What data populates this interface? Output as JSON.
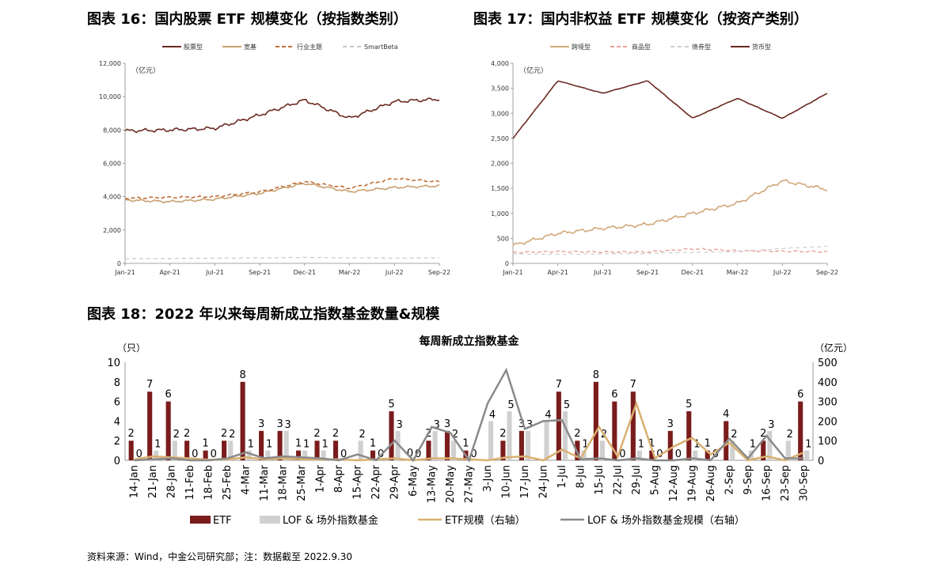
{
  "fig16": {
    "title": "图表 16：国内股票 ETF 规模变化（按指数类别）",
    "unit": "（亿元）",
    "yticks": [
      "0",
      "2,000",
      "4,000",
      "6,000",
      "8,000",
      "10,000",
      "12,000"
    ],
    "xticks": [
      "Jan-21",
      "Apr-21",
      "Jul-21",
      "Sep-21",
      "Dec-21",
      "Mar-22",
      "Jul-22",
      "Sep-22"
    ],
    "legend": [
      "股票型",
      "宽基",
      "行业主题",
      "SmartBeta"
    ],
    "colors": [
      "#6b2a22",
      "#c8a070",
      "#c0703a",
      "#c8c8c8"
    ]
  },
  "fig17": {
    "title": "图表 17：国内非权益 ETF 规模变化（按资产类别）",
    "unit": "（亿元）",
    "yticks": [
      "0",
      "500",
      "1,000",
      "1,500",
      "2,000",
      "2,500",
      "3,000",
      "3,500",
      "4,000"
    ],
    "xticks": [
      "Jan-21",
      "Apr-21",
      "Jul-21",
      "Sep-21",
      "Dec-21",
      "Mar-22",
      "Jul-22",
      "Sep-22"
    ],
    "legend": [
      "跨境型",
      "商品型",
      "债券型",
      "货币型"
    ],
    "colors": [
      "#d0a878",
      "#e8a098",
      "#d0d0d0",
      "#6b2a22"
    ]
  },
  "fig18": {
    "title": "图表 18：2022 年以来每周新成立指数基金数量&规模",
    "chart_title": "每周新成立指数基金",
    "left_unit": "（只）",
    "right_unit": "（亿元）",
    "left_ticks": [
      "0",
      "2",
      "4",
      "6",
      "8",
      "10"
    ],
    "right_ticks": [
      "0",
      "100",
      "200",
      "300",
      "400",
      "500"
    ],
    "legend": [
      "ETF",
      "LOF & 场外指数基金",
      "ETF规模（右轴）",
      "LOF & 场外指数基金规模（右轴）"
    ],
    "colors": {
      "etf": "#7a1c1c",
      "lof": "#d0d0d0",
      "etf_scale": "#d9b070",
      "lof_scale": "#8a8a8a"
    }
  },
  "chart_data": [
    {
      "type": "line",
      "title": "图表 16：国内股票 ETF 规模变化（按指数类别）",
      "ylabel": "（亿元）",
      "ylim": [
        0,
        12000
      ],
      "x": [
        "Jan-21",
        "Apr-21",
        "Jul-21",
        "Sep-21",
        "Dec-21",
        "Mar-22",
        "Jul-22",
        "Sep-22"
      ],
      "series": [
        {
          "name": "股票型",
          "values": [
            7950,
            8000,
            8100,
            8900,
            9800,
            8700,
            9700,
            9850
          ]
        },
        {
          "name": "宽基",
          "values": [
            3800,
            3700,
            3850,
            4200,
            4800,
            4300,
            4550,
            4650
          ]
        },
        {
          "name": "行业主题",
          "values": [
            3900,
            3950,
            4000,
            4300,
            4900,
            4500,
            5100,
            4900
          ]
        },
        {
          "name": "SmartBeta",
          "values": [
            280,
            290,
            310,
            330,
            360,
            330,
            320,
            330
          ]
        }
      ]
    },
    {
      "type": "line",
      "title": "图表 17：国内非权益 ETF 规模变化（按资产类别）",
      "ylabel": "（亿元）",
      "ylim": [
        0,
        4000
      ],
      "x": [
        "Jan-21",
        "Apr-21",
        "Jul-21",
        "Sep-21",
        "Dec-21",
        "Mar-22",
        "Jul-22",
        "Sep-22"
      ],
      "series": [
        {
          "name": "跨境型",
          "values": [
            360,
            600,
            700,
            780,
            1000,
            1200,
            1650,
            1480
          ]
        },
        {
          "name": "商品型",
          "values": [
            220,
            240,
            230,
            230,
            290,
            250,
            240,
            230
          ]
        },
        {
          "name": "债券型",
          "values": [
            190,
            180,
            190,
            200,
            220,
            230,
            300,
            340
          ]
        },
        {
          "name": "货币型",
          "values": [
            2500,
            3650,
            3400,
            3650,
            2900,
            3300,
            2900,
            3400
          ]
        }
      ]
    },
    {
      "type": "bar",
      "title": "每周新成立指数基金",
      "categories": [
        "14-Jan",
        "21-Jan",
        "28-Jan",
        "11-Feb",
        "18-Feb",
        "25-Feb",
        "4-Mar",
        "11-Mar",
        "18-Mar",
        "25-Mar",
        "1-Apr",
        "8-Apr",
        "15-Apr",
        "22-Apr",
        "29-Apr",
        "6-May",
        "13-May",
        "20-May",
        "27-May",
        "3-Jun",
        "10-Jun",
        "17-Jun",
        "24-Jun",
        "1-Jul",
        "8-Jul",
        "15-Jul",
        "22-Jul",
        "29-Jul",
        "5-Aug",
        "12-Aug",
        "19-Aug",
        "26-Aug",
        "2-Sep",
        "9-Sep",
        "16-Sep",
        "23-Sep",
        "30-Sep"
      ],
      "ylim": [
        0,
        10
      ],
      "y2lim": [
        0,
        500
      ],
      "series": [
        {
          "name": "ETF",
          "axis": "left",
          "values": [
            2,
            7,
            6,
            2,
            1,
            2,
            8,
            3,
            3,
            1,
            2,
            2,
            0,
            1,
            5,
            0,
            2,
            3,
            1,
            0,
            2,
            3,
            0,
            7,
            2,
            8,
            6,
            7,
            1,
            3,
            5,
            1,
            4,
            0,
            2,
            0,
            6
          ]
        },
        {
          "name": "LOF & 场外指数基金",
          "axis": "left",
          "values": [
            0,
            1,
            2,
            0,
            0,
            2,
            1,
            1,
            3,
            1,
            1,
            0,
            2,
            0,
            3,
            0,
            3,
            2,
            0,
            4,
            5,
            3,
            4,
            5,
            1,
            2,
            0,
            1,
            0,
            0,
            1,
            0,
            2,
            1,
            3,
            2,
            1
          ]
        },
        {
          "name": "ETF规模（右轴）",
          "axis": "right",
          "values": [
            5,
            20,
            15,
            10,
            3,
            5,
            15,
            5,
            10,
            5,
            5,
            5,
            0,
            5,
            10,
            0,
            10,
            10,
            5,
            0,
            15,
            20,
            0,
            55,
            10,
            170,
            20,
            290,
            10,
            70,
            115,
            30,
            90,
            0,
            20,
            0,
            40
          ]
        },
        {
          "name": "LOF & 场外指数基金规模（右轴）",
          "axis": "right",
          "values": [
            0,
            5,
            10,
            0,
            0,
            10,
            40,
            10,
            20,
            15,
            10,
            0,
            30,
            0,
            100,
            0,
            170,
            140,
            0,
            290,
            460,
            160,
            200,
            205,
            5,
            10,
            0,
            10,
            0,
            0,
            10,
            0,
            110,
            10,
            125,
            10,
            10
          ]
        }
      ],
      "data_labels": {
        "ETF": [
          2,
          7,
          6,
          2,
          1,
          2,
          8,
          3,
          3,
          1,
          2,
          2,
          null,
          1,
          5,
          0,
          2,
          3,
          1,
          null,
          2,
          3,
          null,
          7,
          2,
          8,
          6,
          7,
          1,
          3,
          5,
          1,
          4,
          null,
          2,
          null,
          6
        ],
        "LOF & 场外指数基金": [
          0,
          1,
          2,
          0,
          0,
          2,
          1,
          1,
          3,
          1,
          1,
          0,
          2,
          0,
          3,
          0,
          3,
          2,
          0,
          4,
          5,
          3,
          4,
          5,
          1,
          2,
          0,
          1,
          0,
          0,
          1,
          0,
          2,
          1,
          3,
          2,
          1
        ]
      }
    }
  ],
  "footer": "资料来源：Wind，中金公司研究部；注：数据截至 2022.9.30"
}
